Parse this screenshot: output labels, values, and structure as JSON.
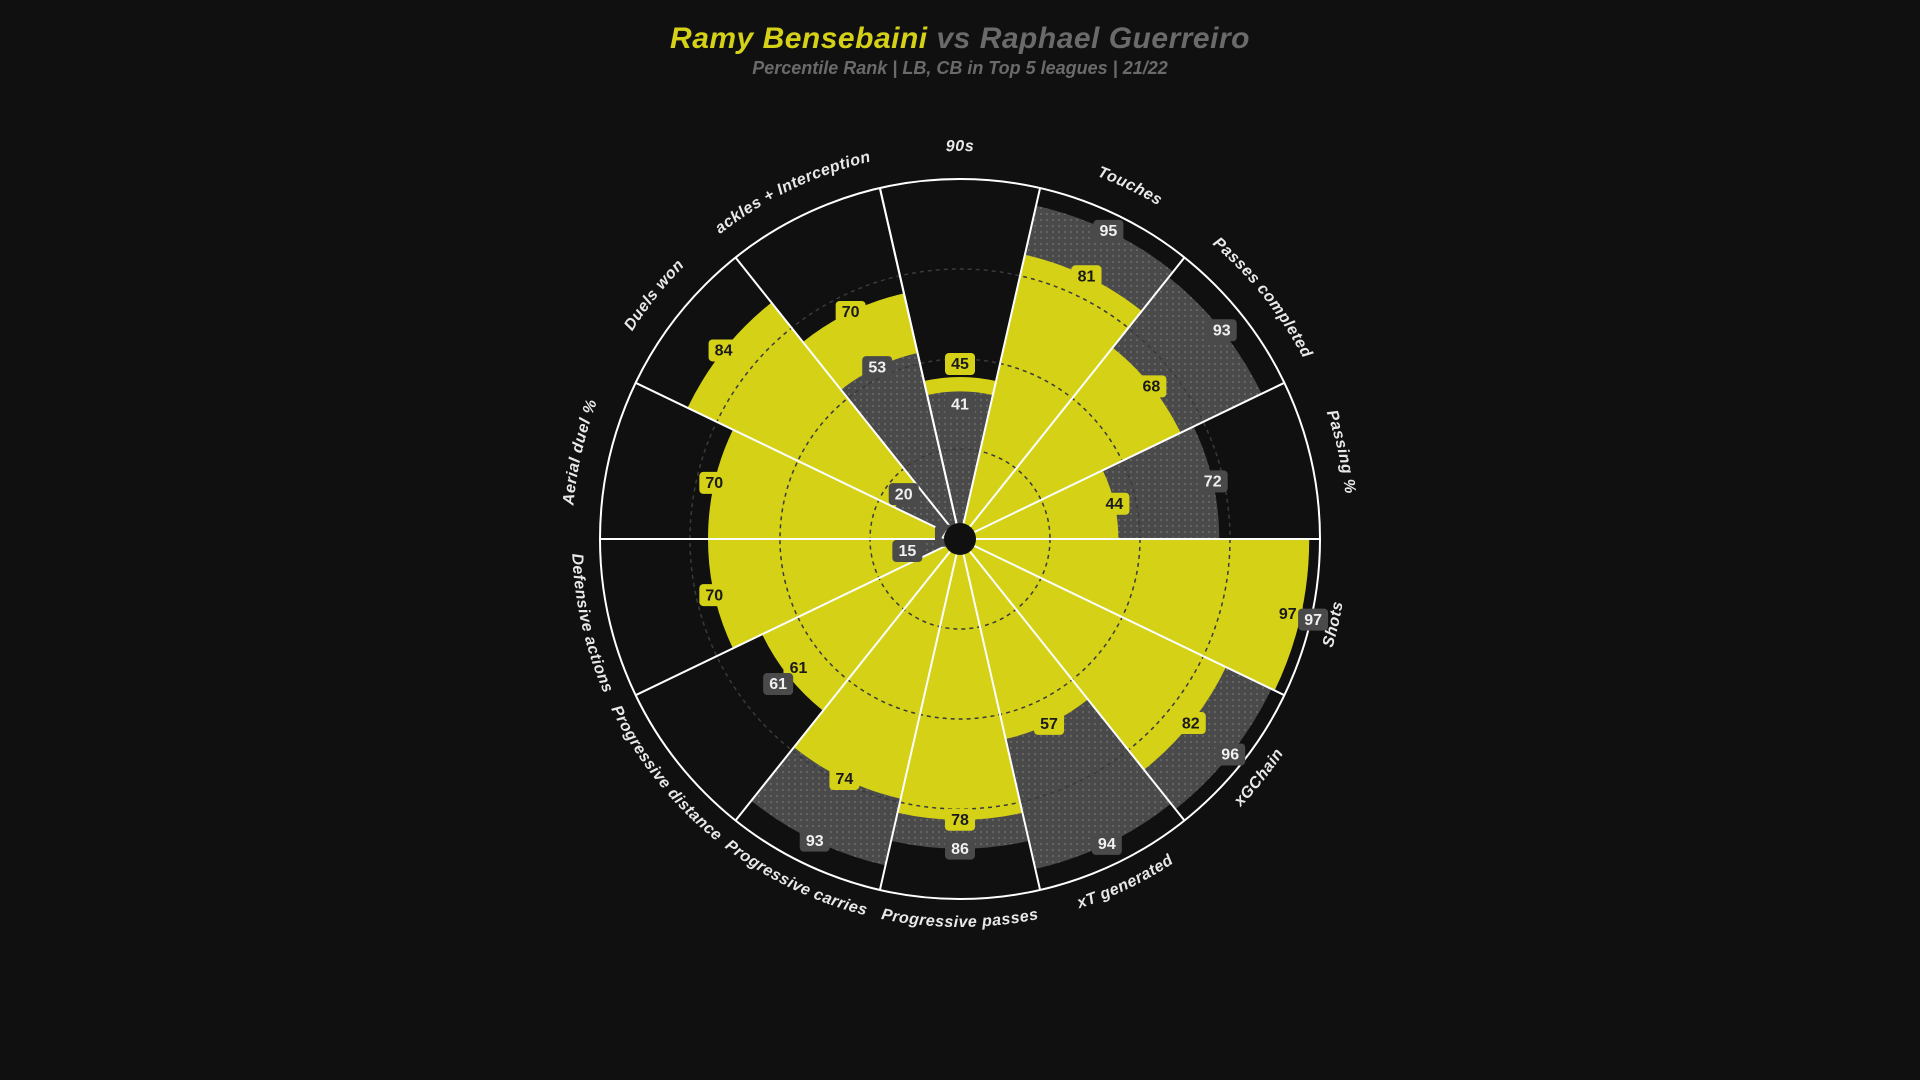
{
  "title": {
    "player1": "Ramy Bensebaini",
    "vs": "vs",
    "player2": "Raphael Guerreiro",
    "subtitle": "Percentile Rank | LB, CB in Top 5 leagues | 21/22",
    "player1_color": "#d4d117",
    "player2_color": "#6a6a6a",
    "subtitle_color": "#6a6a6a",
    "vs_color": "#6a6a6a"
  },
  "chart": {
    "type": "radial-bar",
    "background": "#101010",
    "outer_radius": 360,
    "grid_rings": [
      0.25,
      0.5,
      0.75,
      1.0
    ],
    "ring_stroke": "#3a3a3a",
    "ring_dash": "4 4",
    "outer_ring_stroke": "#ffffff",
    "spoke_stroke": "#ffffff",
    "spoke_width": 2,
    "series": {
      "p1_fill": "#d4d117",
      "p2_fill": "#4a4a4a",
      "p2_pattern": "dots",
      "p1_label_bg": "#d4d117",
      "p1_label_fg": "#1a1a1a",
      "p2_label_bg": "#4a4a4a",
      "p2_label_fg": "#f0f0f0"
    },
    "center_dot_radius": 16,
    "center_dot_fill": "#101010",
    "metric_label_color": "#e8e8e8",
    "metric_label_fontsize": 16,
    "value_label_fontsize": 16,
    "metrics": [
      {
        "label": "90s",
        "p1": 45,
        "p2": 41
      },
      {
        "label": "Touches",
        "p1": 81,
        "p2": 95
      },
      {
        "label": "Passes completed",
        "p1": 68,
        "p2": 93
      },
      {
        "label": "Passing %",
        "p1": 44,
        "p2": 72
      },
      {
        "label": "Shots",
        "p1": 97,
        "p2": 97
      },
      {
        "label": "xGChain",
        "p1": 82,
        "p2": 96
      },
      {
        "label": "xT generated",
        "p1": 57,
        "p2": 94
      },
      {
        "label": "Progressive passes",
        "p1": 78,
        "p2": 86
      },
      {
        "label": "Progressive carries",
        "p1": 74,
        "p2": 93
      },
      {
        "label": "Progressive distance",
        "p1": 61,
        "p2": 61
      },
      {
        "label": "Defensive actions",
        "p1": 70,
        "p2": 15
      },
      {
        "label": "Aerial duel %",
        "p1": 70,
        "p2": 4
      },
      {
        "label": "Duels won",
        "p1": 84,
        "p2": 20
      },
      {
        "label": "Tackles + Interceptions",
        "p1": 70,
        "p2": 53
      }
    ]
  }
}
